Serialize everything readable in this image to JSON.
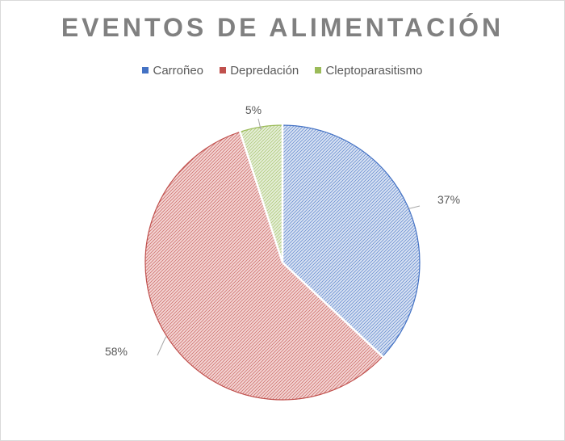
{
  "chart_data": {
    "type": "pie",
    "title": "EVENTOS DE ALIMENTACIÓN",
    "legend_position": "top",
    "categories": [
      "Carroñeo",
      "Depredación",
      "Cleptoparasitismo"
    ],
    "values": [
      37,
      58,
      5
    ],
    "labels": [
      "37%",
      "58%",
      "5%"
    ],
    "colors": [
      "#4472c4",
      "#c0504d",
      "#9bbb59"
    ],
    "fills": [
      "#dae3f3",
      "#f4d6d5",
      "#e6efd9"
    ]
  }
}
